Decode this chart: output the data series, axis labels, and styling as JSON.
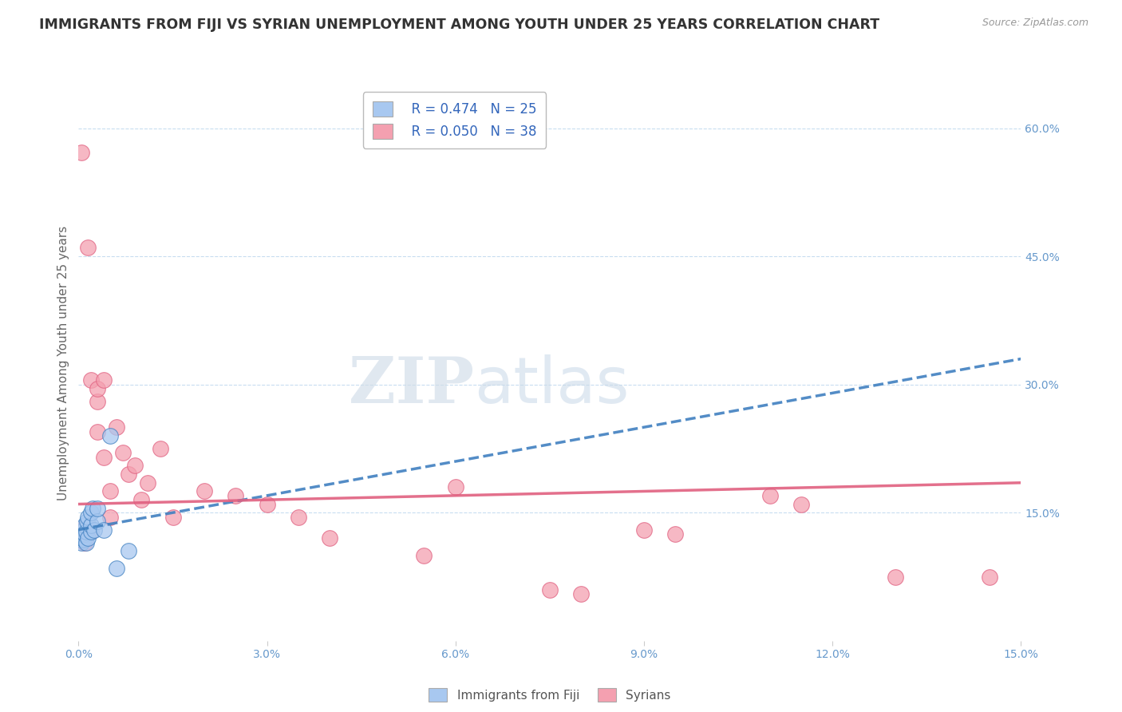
{
  "title": "IMMIGRANTS FROM FIJI VS SYRIAN UNEMPLOYMENT AMONG YOUTH UNDER 25 YEARS CORRELATION CHART",
  "source": "Source: ZipAtlas.com",
  "ylabel": "Unemployment Among Youth under 25 years",
  "right_yticks": [
    "60.0%",
    "45.0%",
    "30.0%",
    "15.0%"
  ],
  "right_ytick_vals": [
    0.6,
    0.45,
    0.3,
    0.15
  ],
  "xmin": 0.0,
  "xmax": 0.15,
  "ymin": 0.0,
  "ymax": 0.65,
  "legend_r1": "R = 0.474",
  "legend_n1": "N = 25",
  "legend_r2": "R = 0.050",
  "legend_n2": "N = 38",
  "fiji_color": "#a8c8f0",
  "syrian_color": "#f4a0b0",
  "fiji_line_color": "#4080c0",
  "syrian_line_color": "#e06080",
  "watermark_zip": "ZIP",
  "watermark_atlas": "atlas",
  "fiji_points_x": [
    0.0003,
    0.0003,
    0.0005,
    0.0005,
    0.0007,
    0.0008,
    0.0008,
    0.001,
    0.001,
    0.0012,
    0.0012,
    0.0013,
    0.0015,
    0.0015,
    0.002,
    0.002,
    0.002,
    0.0022,
    0.0025,
    0.003,
    0.003,
    0.004,
    0.005,
    0.006,
    0.008
  ],
  "fiji_points_y": [
    0.118,
    0.122,
    0.115,
    0.125,
    0.12,
    0.118,
    0.13,
    0.125,
    0.135,
    0.115,
    0.128,
    0.14,
    0.12,
    0.145,
    0.128,
    0.135,
    0.15,
    0.155,
    0.13,
    0.14,
    0.155,
    0.13,
    0.24,
    0.085,
    0.105
  ],
  "syrian_points_x": [
    0.0003,
    0.0005,
    0.0008,
    0.001,
    0.001,
    0.0015,
    0.002,
    0.002,
    0.003,
    0.003,
    0.003,
    0.004,
    0.004,
    0.005,
    0.005,
    0.006,
    0.007,
    0.008,
    0.009,
    0.01,
    0.011,
    0.013,
    0.015,
    0.02,
    0.025,
    0.03,
    0.035,
    0.04,
    0.055,
    0.06,
    0.075,
    0.08,
    0.09,
    0.095,
    0.11,
    0.115,
    0.13,
    0.145
  ],
  "syrian_points_y": [
    0.13,
    0.572,
    0.125,
    0.115,
    0.12,
    0.46,
    0.128,
    0.305,
    0.28,
    0.295,
    0.245,
    0.215,
    0.305,
    0.175,
    0.145,
    0.25,
    0.22,
    0.195,
    0.205,
    0.165,
    0.185,
    0.225,
    0.145,
    0.175,
    0.17,
    0.16,
    0.145,
    0.12,
    0.1,
    0.18,
    0.06,
    0.055,
    0.13,
    0.125,
    0.17,
    0.16,
    0.075,
    0.075
  ],
  "fiji_line_x": [
    0.0,
    0.15
  ],
  "fiji_line_y": [
    0.13,
    0.33
  ],
  "syrian_line_x": [
    0.0,
    0.15
  ],
  "syrian_line_y": [
    0.16,
    0.185
  ]
}
